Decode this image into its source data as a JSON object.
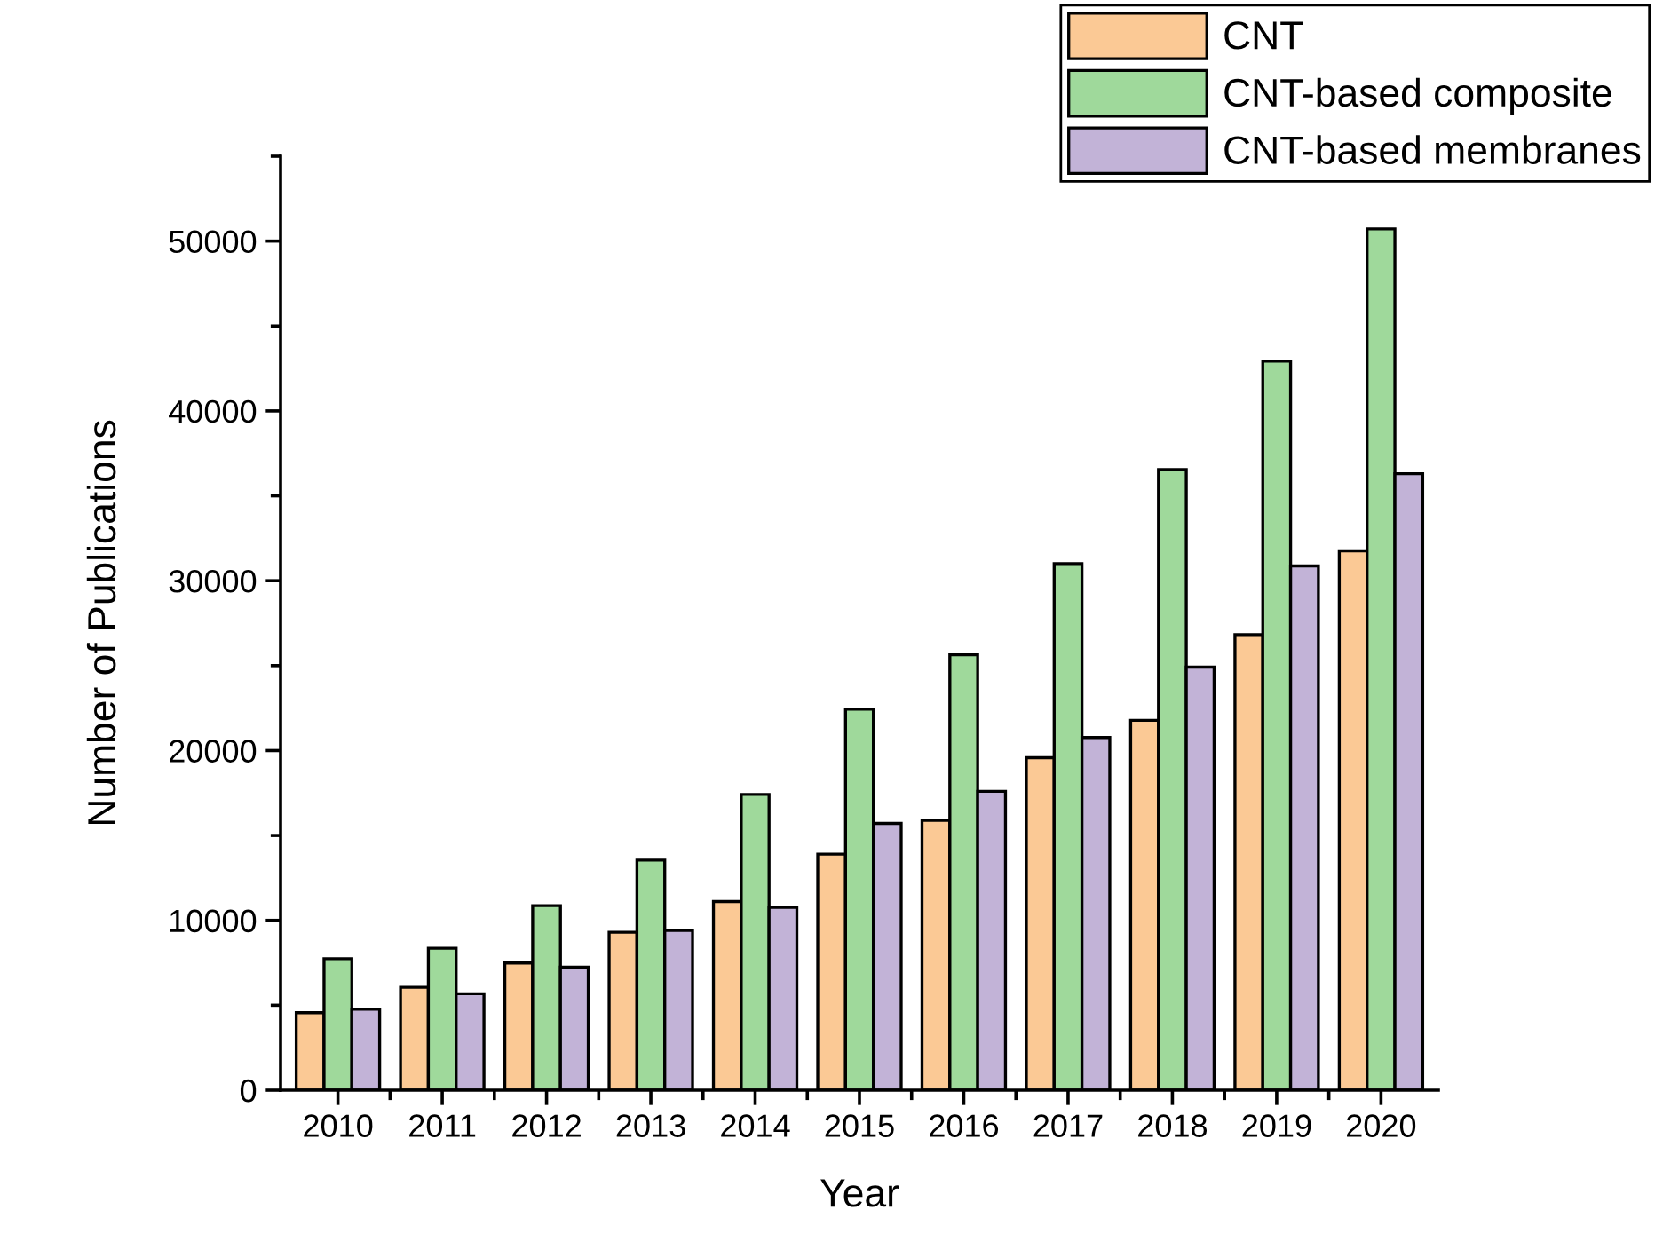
{
  "chart_data": {
    "type": "bar",
    "xlabel": "Year",
    "ylabel": "Number of Publications",
    "categories": [
      "2010",
      "2011",
      "2012",
      "2013",
      "2014",
      "2015",
      "2016",
      "2017",
      "2018",
      "2019",
      "2020"
    ],
    "series": [
      {
        "name": "CNT",
        "color": "#fbc995",
        "values": [
          4560,
          6060,
          7490,
          9300,
          11110,
          13900,
          15890,
          19580,
          21780,
          26830,
          31760
        ]
      },
      {
        "name": "CNT-based composite",
        "color": "#9fd99b",
        "values": [
          7740,
          8360,
          10870,
          13550,
          17420,
          22440,
          25640,
          31010,
          36550,
          42930,
          50720
        ]
      },
      {
        "name": "CNT-based membranes",
        "color": "#c2b3d7",
        "values": [
          4770,
          5680,
          7250,
          9410,
          10770,
          15710,
          17600,
          20770,
          24910,
          30870,
          36300
        ]
      }
    ],
    "ylim": [
      0,
      55000
    ],
    "yticks": [
      0,
      10000,
      20000,
      30000,
      40000,
      50000
    ],
    "grid": false,
    "legend": "top right"
  }
}
